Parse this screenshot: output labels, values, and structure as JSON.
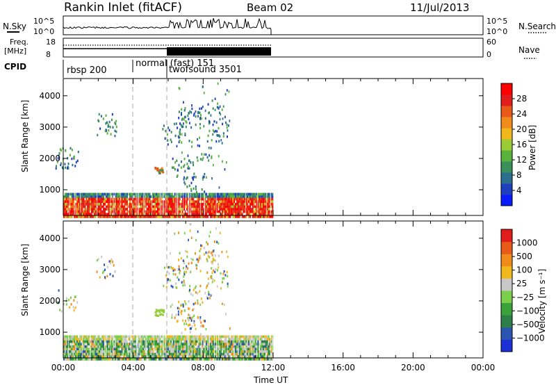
{
  "header": {
    "site": "Rankin Inlet (fitACF)",
    "beam": "Beam 02",
    "date": "11/Jul/2013"
  },
  "strips": {
    "nsky_label": "N.Sky",
    "nsky_ticks": [
      "10^5",
      "10^0"
    ],
    "nsearch_label": "N.Search",
    "nsearch_ticks": [
      "10^5",
      "10^0"
    ],
    "freq_label": "Freq.",
    "freq_unit": "[MHz]",
    "freq_ticks": [
      "18",
      "8"
    ],
    "nave_label": "Nave",
    "nave_ticks": [
      "60",
      "0"
    ],
    "cpid_label": "CPID",
    "modes": [
      "rbsp 200",
      "normal (fast) 151",
      "twofsound 3501"
    ]
  },
  "chart_data": [
    {
      "type": "heatmap",
      "name": "power",
      "ylabel": "Slant Range [km]",
      "xlabel": "",
      "x_ticks": [
        "00:00",
        "04:00",
        "08:00",
        "12:00",
        "16:00",
        "20:00",
        "00:00"
      ],
      "y_ticks": [
        "1000",
        "2000",
        "3000",
        "4000"
      ],
      "xlim_hours": [
        0,
        24
      ],
      "ylim_km": [
        180,
        4550
      ],
      "data_extent_hours": [
        0,
        12
      ],
      "colorbar": {
        "label": "Power [dB]",
        "ticks": [
          "4",
          "8",
          "12",
          "16",
          "20",
          "24",
          "28"
        ],
        "colors": [
          "#0a1aff",
          "#1f3fbf",
          "#2c6e8f",
          "#3a8f5a",
          "#59b23c",
          "#9ccc35",
          "#f0b81c",
          "#f08a1a",
          "#e85a1a",
          "#e01c1c",
          "#ff0000"
        ]
      },
      "features": [
        {
          "desc": "near-range band",
          "hours": [
            0,
            12
          ],
          "range_km": [
            200,
            900
          ],
          "dominant": "red",
          "secondary": "orange/yellow"
        },
        {
          "desc": "patch",
          "hours": [
            5.2,
            5.7
          ],
          "range_km": [
            1550,
            1750
          ],
          "colors": "orange/green"
        },
        {
          "desc": "scattered echoes",
          "hours": [
            6,
            9
          ],
          "range_km": [
            1000,
            4500
          ],
          "colors": "blue/green"
        }
      ]
    },
    {
      "type": "heatmap",
      "name": "velocity",
      "ylabel": "Slant Range [km]",
      "xlabel": "Time UT",
      "x_ticks": [
        "00:00",
        "04:00",
        "08:00",
        "12:00",
        "16:00",
        "20:00",
        "00:00"
      ],
      "y_ticks": [
        "1000",
        "2000",
        "3000",
        "4000"
      ],
      "xlim_hours": [
        0,
        24
      ],
      "ylim_km": [
        180,
        4550
      ],
      "data_extent_hours": [
        0,
        12
      ],
      "colorbar": {
        "label": "Velocity [m s⁻¹]",
        "ticks": [
          "1000",
          "500",
          "100",
          "25",
          "−25",
          "−100",
          "−500",
          "−1000"
        ],
        "colors": [
          "#1d2fd6",
          "#2a56b0",
          "#2e7e4a",
          "#3aa23a",
          "#7ccf4a",
          "#c8c8c8",
          "#f0b81c",
          "#f08a1a",
          "#e85a1a",
          "#e01c1c"
        ]
      },
      "features": [
        {
          "desc": "near-range band",
          "hours": [
            0,
            12
          ],
          "range_km": [
            200,
            900
          ],
          "dominant": "green",
          "secondary": "grey/yellow"
        },
        {
          "desc": "patch",
          "hours": [
            5.2,
            5.7
          ],
          "range_km": [
            1550,
            1750
          ],
          "colors": "light green"
        },
        {
          "desc": "scattered echoes",
          "hours": [
            6,
            9
          ],
          "range_km": [
            1000,
            4500
          ],
          "colors": "grey/orange/blue"
        }
      ]
    }
  ]
}
